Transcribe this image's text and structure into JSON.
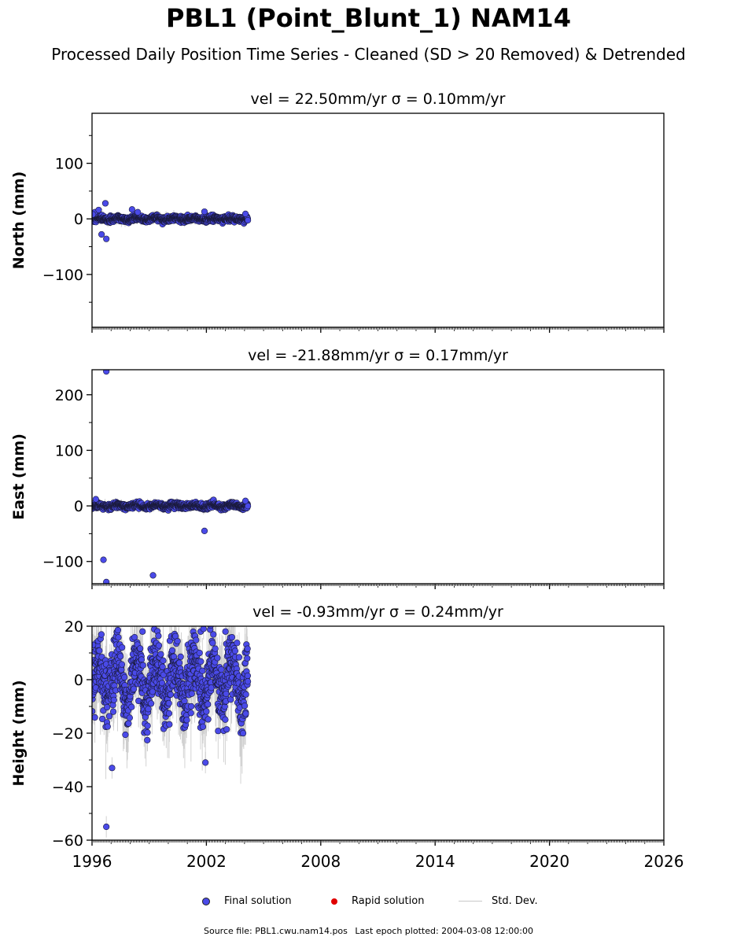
{
  "title": "PBL1 (Point_Blunt_1) NAM14",
  "subtitle": "Processed Daily Position Time Series - Cleaned (SD > 20 Removed) & Detrended",
  "legend": {
    "final_label": "Final solution",
    "rapid_label": "Rapid solution",
    "std_label": "Std. Dev.",
    "final_color": "#4a4ae8",
    "rapid_color": "#e00000",
    "std_color": "#c8c8c8"
  },
  "footer": {
    "source": "Source file: PBL1.cwu.nam14.pos",
    "last_epoch": "Last epoch plotted: 2004-03-08 12:00:00"
  },
  "chart_data": [
    {
      "type": "scatter",
      "panel": "north",
      "title": "vel = 22.50mm/yr   σ = 0.10mm/yr",
      "ylabel": "North (mm)",
      "xlabel": "",
      "xlim": [
        1996,
        2026
      ],
      "ylim": [
        -195,
        190
      ],
      "yticks": [
        -100,
        0,
        100
      ],
      "xticks": [
        1996,
        2002,
        2008,
        2014,
        2020,
        2026
      ],
      "show_xtick_labels": false,
      "grid": false,
      "time_range": [
        1996.0,
        2004.18
      ],
      "noise_sd": 2.5,
      "seasonal_amp": 1.5,
      "outliers": [
        {
          "x": 1996.15,
          "y": 12
        },
        {
          "x": 1996.35,
          "y": 16
        },
        {
          "x": 1996.5,
          "y": -28
        },
        {
          "x": 1996.7,
          "y": 28
        },
        {
          "x": 1996.75,
          "y": -36
        },
        {
          "x": 1998.1,
          "y": 17
        },
        {
          "x": 1998.4,
          "y": 12
        },
        {
          "x": 2001.9,
          "y": 13
        },
        {
          "x": 1996.05,
          "y": 8
        },
        {
          "x": 2004.05,
          "y": 9
        }
      ]
    },
    {
      "type": "scatter",
      "panel": "east",
      "title": "vel = -21.88mm/yr   σ = 0.17mm/yr",
      "ylabel": "East (mm)",
      "xlabel": "",
      "xlim": [
        1996,
        2026
      ],
      "ylim": [
        -140,
        245
      ],
      "yticks": [
        -100,
        0,
        100,
        200
      ],
      "xticks": [
        1996,
        2002,
        2008,
        2014,
        2020,
        2026
      ],
      "show_xtick_labels": false,
      "grid": false,
      "time_range": [
        1996.0,
        2004.18
      ],
      "noise_sd": 2.5,
      "seasonal_amp": 2,
      "outliers": [
        {
          "x": 1996.75,
          "y": 242
        },
        {
          "x": 1996.6,
          "y": -97
        },
        {
          "x": 1996.75,
          "y": -137
        },
        {
          "x": 1999.2,
          "y": -125
        },
        {
          "x": 2001.9,
          "y": -45
        },
        {
          "x": 1996.2,
          "y": 12
        },
        {
          "x": 2004.05,
          "y": 9
        }
      ]
    },
    {
      "type": "scatter",
      "panel": "height",
      "title": "vel = -0.93mm/yr   σ = 0.24mm/yr",
      "ylabel": "Height (mm)",
      "xlabel": "",
      "xlim": [
        1996,
        2026
      ],
      "ylim": [
        -60,
        20
      ],
      "yticks": [
        -60,
        -40,
        -20,
        0,
        20
      ],
      "xticks": [
        1996,
        2002,
        2008,
        2014,
        2020,
        2026
      ],
      "show_xtick_labels": true,
      "grid": false,
      "time_range": [
        1996.0,
        2004.18
      ],
      "noise_sd": 6,
      "seasonal_amp": 8,
      "outliers": [
        {
          "x": 1996.75,
          "y": -55
        },
        {
          "x": 1997.05,
          "y": -33
        },
        {
          "x": 2001.95,
          "y": -31
        },
        {
          "x": 1998.65,
          "y": 18
        },
        {
          "x": 2001.7,
          "y": 18
        },
        {
          "x": 2001.85,
          "y": 19
        },
        {
          "x": 2003.0,
          "y": 18
        },
        {
          "x": 1996.05,
          "y": 13
        }
      ]
    }
  ]
}
